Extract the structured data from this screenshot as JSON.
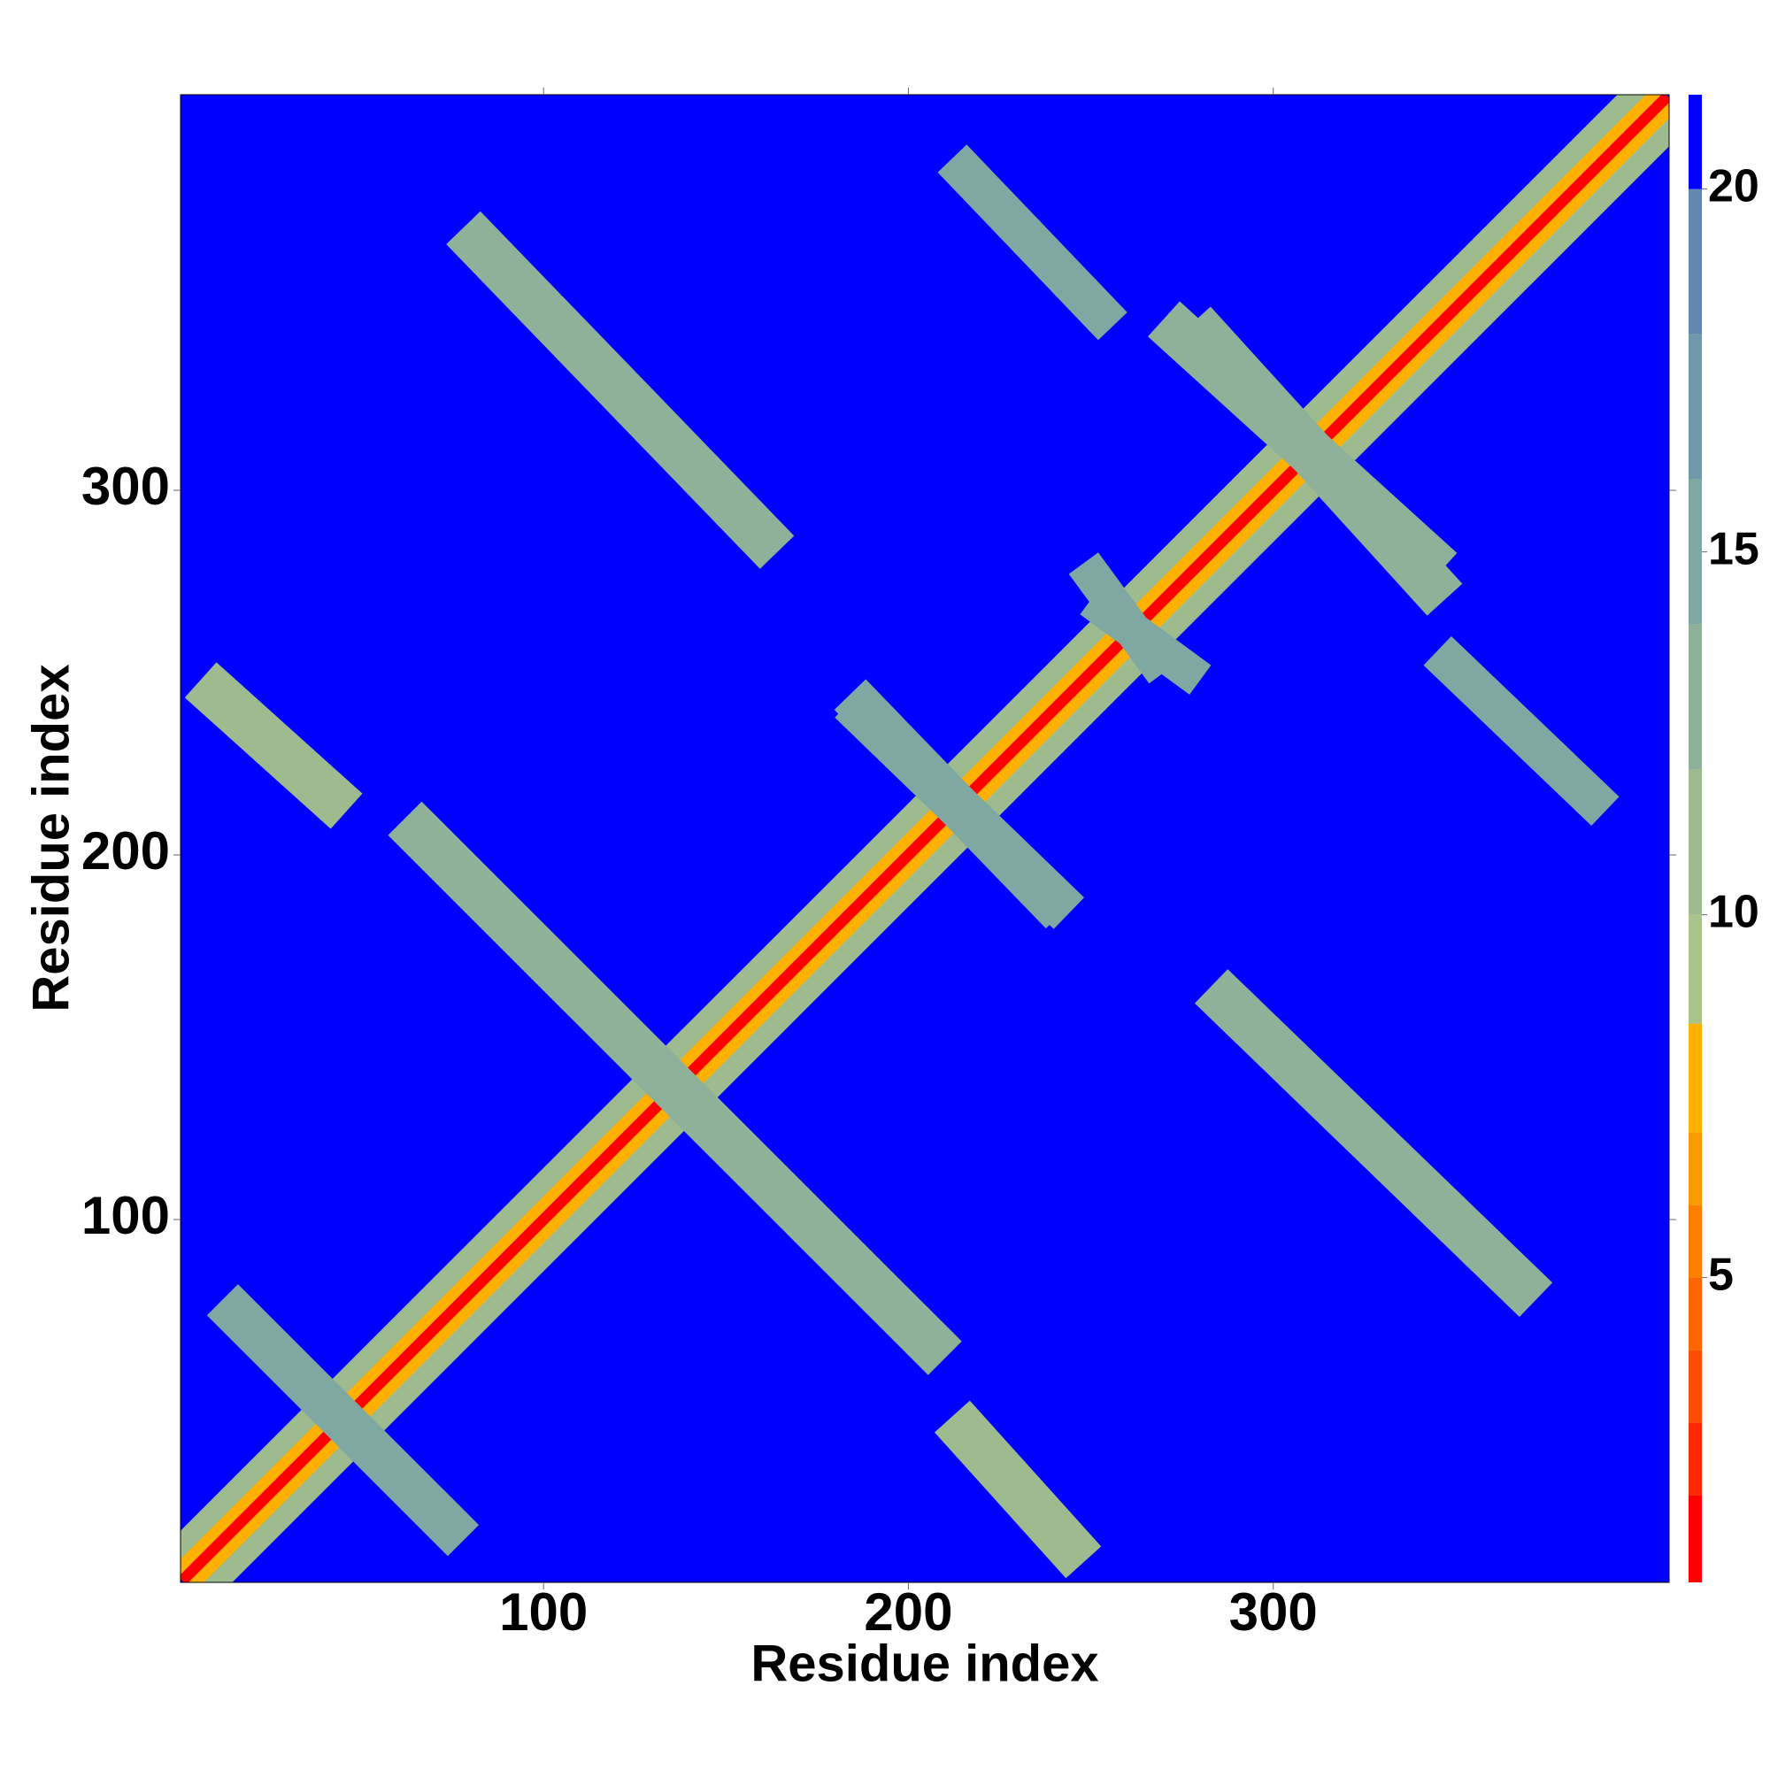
{
  "chart_data": {
    "type": "heatmap",
    "x_label": "Residue index",
    "y_label": "Residue index",
    "xlim": [
      0.5,
      408.5
    ],
    "ylim": [
      0.5,
      408.5
    ],
    "xticks": [
      100,
      200,
      300
    ],
    "yticks": [
      100,
      200,
      300
    ],
    "zlim": [
      0.8,
      21.3
    ],
    "zticks": [
      5,
      10,
      15,
      20
    ],
    "colorscale": [
      {
        "from": 0.8,
        "to": 2,
        "color": "#ff0000"
      },
      {
        "from": 2,
        "to": 3,
        "color": "#ff2a00"
      },
      {
        "from": 3,
        "to": 4,
        "color": "#ff4d00"
      },
      {
        "from": 4,
        "to": 5,
        "color": "#ff6600"
      },
      {
        "from": 5,
        "to": 6,
        "color": "#ff7f00"
      },
      {
        "from": 6,
        "to": 7,
        "color": "#ff9900"
      },
      {
        "from": 7,
        "to": 8.5,
        "color": "#ffb000"
      },
      {
        "from": 8.5,
        "to": 10,
        "color": "#a9c38a"
      },
      {
        "from": 10,
        "to": 12,
        "color": "#9dbb8e"
      },
      {
        "from": 12,
        "to": 14,
        "color": "#8fb199"
      },
      {
        "from": 14,
        "to": 16,
        "color": "#80a8a2"
      },
      {
        "from": 16,
        "to": 18,
        "color": "#7199aa"
      },
      {
        "from": 18,
        "to": 20,
        "color": "#6388b0"
      },
      {
        "from": 20,
        "to": 21.3,
        "color": "#0000ff"
      }
    ],
    "background_value": 21,
    "symmetric": true,
    "bands": [
      {
        "x": [
          1,
          408
        ],
        "y": [
          1,
          408
        ],
        "width": 20,
        "value": 11
      },
      {
        "x": [
          1,
          408
        ],
        "y": [
          1,
          408
        ],
        "width": 9,
        "value": 7.5
      },
      {
        "x": [
          1,
          408
        ],
        "y": [
          1,
          408
        ],
        "width": 3,
        "value": 1.5
      },
      {
        "x": [
          78,
          164
        ],
        "y": [
          372,
          283
        ],
        "width": 13,
        "value": 13
      },
      {
        "x": [
          212,
          256
        ],
        "y": [
          391,
          345
        ],
        "width": 11,
        "value": 15
      },
      {
        "x": [
          278,
          347
        ],
        "y": [
          346,
          270
        ],
        "width": 13,
        "value": 13
      },
      {
        "x": [
          62,
          210
        ],
        "y": [
          210,
          62
        ],
        "width": 13,
        "value": 13
      },
      {
        "x": [
          184,
          244
        ],
        "y": [
          242,
          184
        ],
        "width": 12,
        "value": 15
      },
      {
        "x": [
          6,
          46
        ],
        "y": [
          248,
          212
        ],
        "width": 13,
        "value": 12
      },
      {
        "x": [
          12,
          78
        ],
        "y": [
          78,
          12
        ],
        "width": 12,
        "value": 15
      },
      {
        "x": [
          250,
          280
        ],
        "y": [
          270,
          248
        ],
        "width": 10,
        "value": 15
      }
    ]
  }
}
